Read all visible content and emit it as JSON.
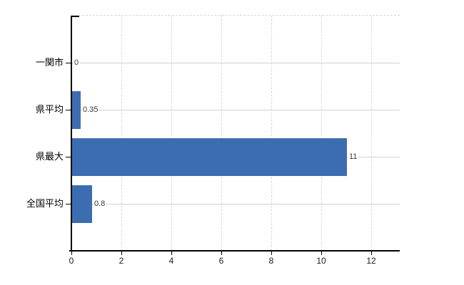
{
  "chart_data": {
    "type": "bar",
    "orientation": "horizontal",
    "categories": [
      "一関市",
      "県平均",
      "県最大",
      "全国平均"
    ],
    "values": [
      0,
      0.35,
      11,
      0.8
    ],
    "value_labels": [
      "0",
      "0.35",
      "11",
      "0.8"
    ],
    "x_ticks": [
      0,
      2,
      4,
      6,
      8,
      10,
      12
    ],
    "x_tick_labels": [
      "0",
      "2",
      "4",
      "6",
      "8",
      "10",
      "12"
    ],
    "xlim": [
      0,
      13.14
    ],
    "grid": true,
    "legend": "none",
    "title": "",
    "colors": {
      "bar": "#3d6db1",
      "axis": "#000000",
      "grid_horizontal": "#ccd5cc",
      "grid_vertical": "#d9d6de",
      "value_label": "#3a3a3a",
      "tick_label": "#1a1a1a",
      "category_label": "#000000",
      "background": "#ffffff"
    }
  }
}
